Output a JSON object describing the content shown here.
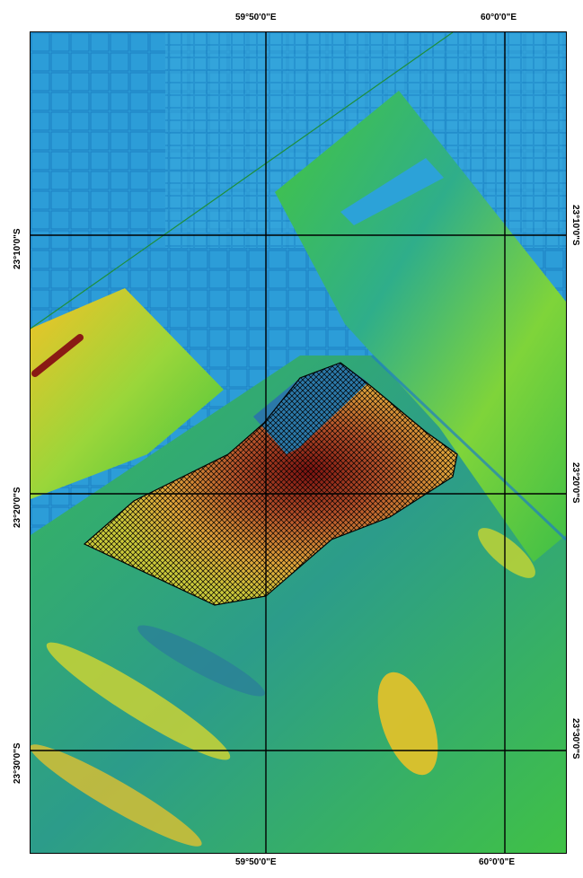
{
  "map": {
    "graticule": {
      "top_labels": [
        "59°50'0\"E",
        "60°0'0\"E"
      ],
      "bottom_labels": [
        "59°50'0\"E",
        "60°0'0\"E"
      ],
      "left_labels": [
        "23°10'0\"S",
        "23°20'0\"S",
        "23°30'0\"S"
      ],
      "right_labels": [
        "23°10'0\"S",
        "23°20'0\"S",
        "23°30'0\"S"
      ]
    },
    "layers": {
      "deep_water_color": "#2a9ad6",
      "hatch_color": "#000000",
      "ship_track_color": "#1f8f3a"
    }
  }
}
